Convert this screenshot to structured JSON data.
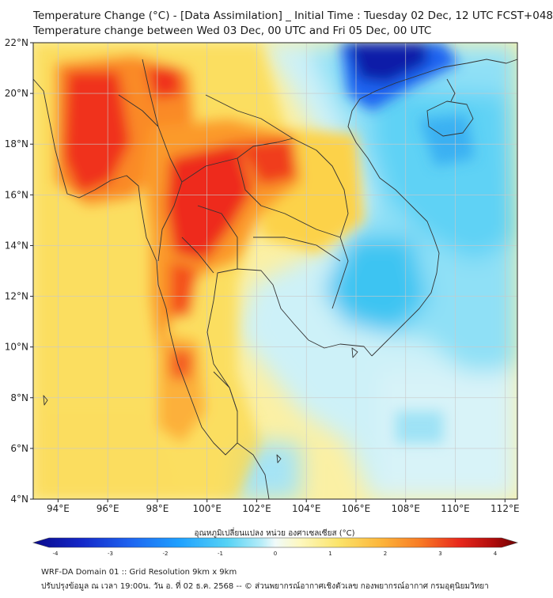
{
  "header": {
    "title_line1": "Temperature Change (°C) - [Data Assimilation] _ Initial Time : Tuesday 02 Dec, 12 UTC FCST+048",
    "title_line2": "Temperature change between Wed 03 Dec, 00 UTC and Fri 05 Dec, 00 UTC"
  },
  "map": {
    "lat_labels": [
      "22°N",
      "20°N",
      "18°N",
      "16°N",
      "14°N",
      "12°N",
      "10°N",
      "8°N",
      "6°N",
      "4°N"
    ],
    "lon_labels": [
      "94°E",
      "96°E",
      "98°E",
      "100°E",
      "102°E",
      "104°E",
      "106°E",
      "108°E",
      "110°E",
      "112°E"
    ],
    "lat_range": [
      4,
      22
    ],
    "lon_range": [
      93,
      112.5
    ]
  },
  "colorbar": {
    "label": "อุณหภูมิเปลี่ยนแปลง หน่วย องศาเซลเซียส (°C)",
    "ticks": [
      "-4",
      "-3",
      "-2",
      "-1",
      "0",
      "1",
      "2",
      "3",
      "4"
    ],
    "range": [
      -4,
      4
    ]
  },
  "footer": {
    "line1": "WRF-DA Domain 01 :: Grid Resolution 9km x 9km",
    "line2": "ปรับปรุงข้อมูล ณ เวลา 19:00น. วัน อ. ที่ 02 ธ.ค. 2568 -- © ส่วนพยากรณ์อากาศเชิงตัวเลข กองพยากรณ์อากาศ กรมอุตุนิยมวิทยา"
  },
  "colors": {
    "deep_blue": "#0a1aa8",
    "mid_blue": "#1e90ff",
    "light_blue": "#7fdcf5",
    "pale_blue": "#dff6fa",
    "pale_yellow": "#fdf6b0",
    "yellow": "#fbe05a",
    "orange": "#fc9a2a",
    "red_orange": "#f44c1c",
    "dark_red": "#7a0000",
    "coast_line": "#333333",
    "grid_line": "#c9c9c9"
  }
}
